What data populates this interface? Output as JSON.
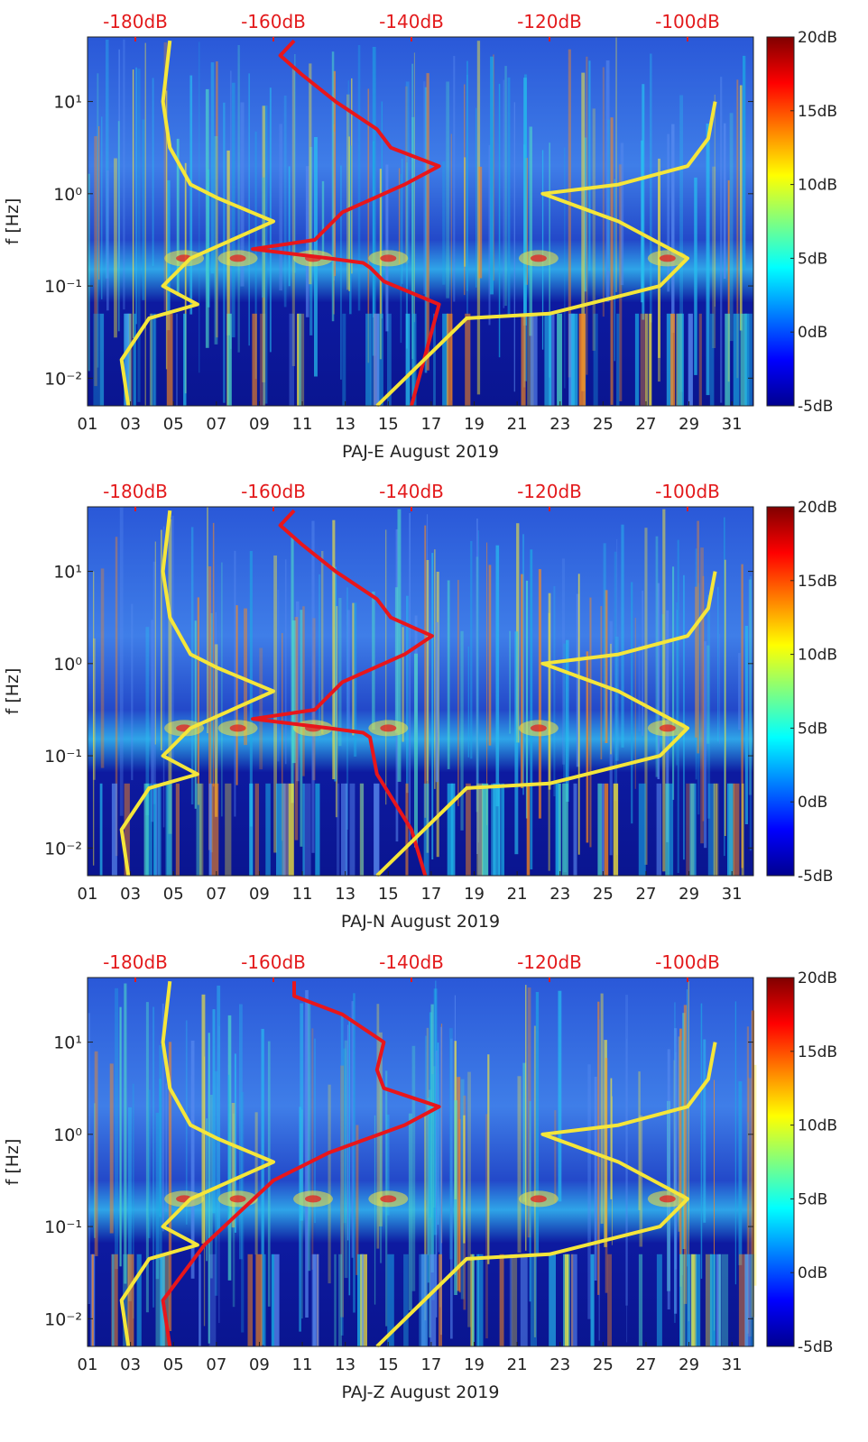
{
  "chart_data": [
    {
      "type": "heatmap",
      "title": "PAJ-E August 2019",
      "xlabel": "PAJ-E August 2019",
      "ylabel": "f [Hz]",
      "x_ticks": [
        "01",
        "03",
        "05",
        "07",
        "09",
        "11",
        "13",
        "15",
        "17",
        "19",
        "21",
        "23",
        "25",
        "27",
        "29",
        "31"
      ],
      "y_ticks": [
        "10⁻²",
        "10⁻¹",
        "10⁰",
        "10¹"
      ],
      "top_axis_ticks": [
        "-180dB",
        "-160dB",
        "-140dB",
        "-120dB",
        "-100dB"
      ],
      "colorbar_ticks": [
        "20dB",
        "15dB",
        "10dB",
        "5dB",
        "0dB",
        "-5dB"
      ],
      "xlim_days": [
        1,
        32
      ],
      "ylim_log10_hz": [
        -2.3,
        1.7
      ],
      "series": [
        {
          "name": "red-psd-curve",
          "color": "#e8161b",
          "top_axis_db": [
            -157,
            -159,
            -156,
            -151,
            -145,
            -143,
            -136,
            -141,
            -150,
            -154,
            -163,
            -152,
            -147,
            -146,
            -144,
            -136,
            -140
          ],
          "log10_freq": [
            1.66,
            1.5,
            1.3,
            1.0,
            0.7,
            0.5,
            0.3,
            0.1,
            -0.2,
            -0.5,
            -0.6,
            -0.7,
            -0.75,
            -0.8,
            -0.95,
            -1.2,
            -2.3
          ]
        },
        {
          "name": "yellow-low-model",
          "color": "#f5e63a",
          "top_axis_db": [
            -175,
            -176,
            -175,
            -172,
            -168,
            -160,
            -172,
            -176,
            -171,
            -178,
            -182,
            -181
          ],
          "log10_freq": [
            1.66,
            1.0,
            0.5,
            0.1,
            -0.05,
            -0.3,
            -0.7,
            -1.0,
            -1.2,
            -1.35,
            -1.8,
            -2.3
          ]
        },
        {
          "name": "yellow-high-model",
          "color": "#f5e63a",
          "top_axis_db": [
            -96,
            -97,
            -100,
            -110,
            -121,
            -110,
            -100,
            -104,
            -120,
            -132,
            -145
          ],
          "log10_freq": [
            1.0,
            0.6,
            0.3,
            0.1,
            0.0,
            -0.3,
            -0.7,
            -1.0,
            -1.3,
            -1.35,
            -2.3
          ]
        }
      ]
    },
    {
      "type": "heatmap",
      "title": "PAJ-N August 2019",
      "xlabel": "PAJ-N August 2019",
      "ylabel": "f [Hz]",
      "x_ticks": [
        "01",
        "03",
        "05",
        "07",
        "09",
        "11",
        "13",
        "15",
        "17",
        "19",
        "21",
        "23",
        "25",
        "27",
        "29",
        "31"
      ],
      "y_ticks": [
        "10⁻²",
        "10⁻¹",
        "10⁰",
        "10¹"
      ],
      "top_axis_ticks": [
        "-180dB",
        "-160dB",
        "-140dB",
        "-120dB",
        "-100dB"
      ],
      "colorbar_ticks": [
        "20dB",
        "15dB",
        "10dB",
        "5dB",
        "0dB",
        "-5dB"
      ],
      "xlim_days": [
        1,
        32
      ],
      "ylim_log10_hz": [
        -2.3,
        1.7
      ],
      "series": [
        {
          "name": "red-psd-curve",
          "color": "#e8161b",
          "top_axis_db": [
            -157,
            -159,
            -156,
            -151,
            -145,
            -143,
            -137,
            -141,
            -150,
            -154,
            -163,
            -152,
            -147,
            -146,
            -145,
            -140,
            -138
          ],
          "log10_freq": [
            1.66,
            1.5,
            1.3,
            1.0,
            0.7,
            0.5,
            0.3,
            0.1,
            -0.2,
            -0.5,
            -0.6,
            -0.7,
            -0.75,
            -0.8,
            -1.2,
            -1.8,
            -2.3
          ]
        },
        {
          "name": "yellow-low-model",
          "color": "#f5e63a",
          "top_axis_db": [
            -175,
            -176,
            -175,
            -172,
            -168,
            -160,
            -172,
            -176,
            -171,
            -178,
            -182,
            -181
          ],
          "log10_freq": [
            1.66,
            1.0,
            0.5,
            0.1,
            -0.05,
            -0.3,
            -0.7,
            -1.0,
            -1.2,
            -1.35,
            -1.8,
            -2.3
          ]
        },
        {
          "name": "yellow-high-model",
          "color": "#f5e63a",
          "top_axis_db": [
            -96,
            -97,
            -100,
            -110,
            -121,
            -110,
            -100,
            -104,
            -120,
            -132,
            -145
          ],
          "log10_freq": [
            1.0,
            0.6,
            0.3,
            0.1,
            0.0,
            -0.3,
            -0.7,
            -1.0,
            -1.3,
            -1.35,
            -2.3
          ]
        }
      ]
    },
    {
      "type": "heatmap",
      "title": "PAJ-Z August 2019",
      "xlabel": "PAJ-Z August 2019",
      "ylabel": "f [Hz]",
      "x_ticks": [
        "01",
        "03",
        "05",
        "07",
        "09",
        "11",
        "13",
        "15",
        "17",
        "19",
        "21",
        "23",
        "25",
        "27",
        "29",
        "31"
      ],
      "y_ticks": [
        "10⁻²",
        "10⁻¹",
        "10⁰",
        "10¹"
      ],
      "top_axis_ticks": [
        "-180dB",
        "-160dB",
        "-140dB",
        "-120dB",
        "-100dB"
      ],
      "colorbar_ticks": [
        "20dB",
        "15dB",
        "10dB",
        "5dB",
        "0dB",
        "-5dB"
      ],
      "xlim_days": [
        1,
        32
      ],
      "ylim_log10_hz": [
        -2.3,
        1.7
      ],
      "series": [
        {
          "name": "red-psd-curve",
          "color": "#e8161b",
          "top_axis_db": [
            -157,
            -157,
            -150,
            -144,
            -145,
            -144,
            -136,
            -141,
            -152,
            -160,
            -170,
            -176,
            -175
          ],
          "log10_freq": [
            1.66,
            1.5,
            1.3,
            1.0,
            0.7,
            0.5,
            0.3,
            0.1,
            -0.2,
            -0.5,
            -1.2,
            -1.8,
            -2.3
          ]
        },
        {
          "name": "yellow-low-model",
          "color": "#f5e63a",
          "top_axis_db": [
            -175,
            -176,
            -175,
            -172,
            -168,
            -160,
            -172,
            -176,
            -171,
            -178,
            -182,
            -181
          ],
          "log10_freq": [
            1.66,
            1.0,
            0.5,
            0.1,
            -0.05,
            -0.3,
            -0.7,
            -1.0,
            -1.2,
            -1.35,
            -1.8,
            -2.3
          ]
        },
        {
          "name": "yellow-high-model",
          "color": "#f5e63a",
          "top_axis_db": [
            -96,
            -97,
            -100,
            -110,
            -121,
            -110,
            -100,
            -104,
            -120,
            -132,
            -145
          ],
          "log10_freq": [
            1.0,
            0.6,
            0.3,
            0.1,
            0.0,
            -0.3,
            -0.7,
            -1.0,
            -1.3,
            -1.35,
            -2.3
          ]
        }
      ]
    }
  ],
  "colors": {
    "top_axis_text": "#e31a1c",
    "axis_text": "#222222",
    "red_curve": "#e8161b",
    "yellow_curve": "#f5e63a"
  }
}
